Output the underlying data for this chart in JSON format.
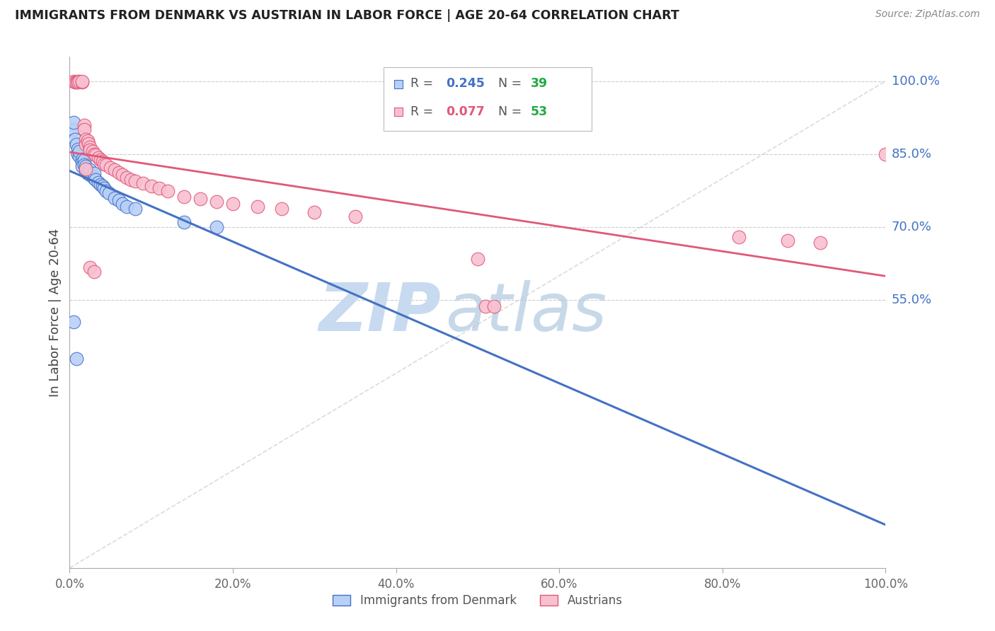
{
  "title": "IMMIGRANTS FROM DENMARK VS AUSTRIAN IN LABOR FORCE | AGE 20-64 CORRELATION CHART",
  "source": "Source: ZipAtlas.com",
  "ylabel": "In Labor Force | Age 20-64",
  "xlim": [
    0.0,
    1.0
  ],
  "ylim_data": [
    0.0,
    1.05
  ],
  "ytick_positions": [
    0.55,
    0.7,
    0.85,
    1.0
  ],
  "ytick_labels": [
    "55.0%",
    "70.0%",
    "85.0%",
    "100.0%"
  ],
  "xtick_positions": [
    0.0,
    0.2,
    0.4,
    0.6,
    0.8,
    1.0
  ],
  "xtick_labels": [
    "0.0%",
    "20.0%",
    "40.0%",
    "60.0%",
    "80.0%",
    "100.0%"
  ],
  "R_denmark": 0.245,
  "N_denmark": 39,
  "R_austrian": 0.077,
  "N_austrian": 53,
  "denmark_fill_color": "#b8d0f8",
  "denmark_edge_color": "#4472c4",
  "austrian_fill_color": "#f8c0d0",
  "austrian_edge_color": "#e05878",
  "denmark_line_color": "#4472c4",
  "austrian_line_color": "#e05878",
  "grid_color": "#cccccc",
  "text_color_blue": "#4472c4",
  "text_color_green": "#22aa44",
  "background_color": "#ffffff",
  "denmark_x": [
    0.005,
    0.005,
    0.007,
    0.008,
    0.01,
    0.01,
    0.012,
    0.012,
    0.015,
    0.015,
    0.015,
    0.018,
    0.018,
    0.02,
    0.02,
    0.02,
    0.022,
    0.023,
    0.025,
    0.025,
    0.028,
    0.03,
    0.03,
    0.032,
    0.035,
    0.038,
    0.04,
    0.042,
    0.045,
    0.048,
    0.055,
    0.06,
    0.065,
    0.07,
    0.08,
    0.14,
    0.18,
    0.005,
    0.008
  ],
  "denmark_y": [
    0.9,
    0.915,
    0.88,
    0.87,
    0.86,
    0.85,
    0.845,
    0.855,
    0.84,
    0.832,
    0.825,
    0.838,
    0.828,
    0.82,
    0.815,
    0.825,
    0.81,
    0.815,
    0.808,
    0.818,
    0.805,
    0.8,
    0.81,
    0.798,
    0.792,
    0.788,
    0.785,
    0.78,
    0.775,
    0.77,
    0.76,
    0.755,
    0.748,
    0.742,
    0.738,
    0.71,
    0.7,
    0.505,
    0.43
  ],
  "austrian_x": [
    0.005,
    0.007,
    0.008,
    0.01,
    0.01,
    0.012,
    0.015,
    0.015,
    0.018,
    0.018,
    0.02,
    0.02,
    0.022,
    0.023,
    0.025,
    0.025,
    0.028,
    0.03,
    0.032,
    0.035,
    0.038,
    0.04,
    0.042,
    0.045,
    0.05,
    0.055,
    0.06,
    0.065,
    0.07,
    0.075,
    0.08,
    0.09,
    0.1,
    0.11,
    0.12,
    0.14,
    0.16,
    0.18,
    0.2,
    0.23,
    0.26,
    0.3,
    0.35,
    0.5,
    0.51,
    0.52,
    0.82,
    0.88,
    0.92,
    1.0,
    0.02,
    0.025,
    0.03
  ],
  "austrian_y": [
    1.0,
    0.998,
    0.998,
    1.0,
    0.998,
    1.0,
    0.998,
    1.0,
    0.91,
    0.9,
    0.88,
    0.87,
    0.878,
    0.872,
    0.865,
    0.858,
    0.855,
    0.85,
    0.848,
    0.842,
    0.838,
    0.835,
    0.83,
    0.828,
    0.822,
    0.818,
    0.812,
    0.808,
    0.802,
    0.798,
    0.795,
    0.79,
    0.785,
    0.78,
    0.775,
    0.762,
    0.758,
    0.752,
    0.748,
    0.742,
    0.738,
    0.73,
    0.722,
    0.635,
    0.538,
    0.538,
    0.68,
    0.672,
    0.668,
    0.85,
    0.82,
    0.618,
    0.608
  ]
}
